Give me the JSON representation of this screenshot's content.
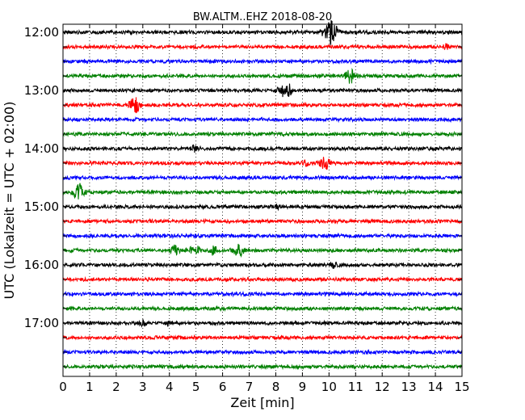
{
  "chart_data": {
    "type": "line",
    "title": "BW.ALTM..EHZ 2018-08-20",
    "xlabel": "Zeit  [min]",
    "ylabel": "UTC (Lokalzeit = UTC + 02:00)",
    "xlim": [
      0,
      15
    ],
    "x_ticks": [
      0,
      1,
      2,
      3,
      4,
      5,
      6,
      7,
      8,
      9,
      10,
      11,
      12,
      13,
      14,
      15
    ],
    "x_tick_labels": [
      "0",
      "1",
      "2",
      "3",
      "4",
      "5",
      "6",
      "7",
      "8",
      "9",
      "10",
      "11",
      "12",
      "13",
      "14",
      "15"
    ],
    "y_tick_labels": [
      "12:00",
      "13:00",
      "14:00",
      "15:00",
      "16:00",
      "17:00"
    ],
    "grid": true,
    "trace_colors": [
      "#000000",
      "#ff0000",
      "#0000ff",
      "#008000"
    ],
    "traces": [
      {
        "start": "12:00",
        "color": "#000000",
        "events": [
          {
            "x": 10.05,
            "amp": 14
          }
        ]
      },
      {
        "start": "12:15",
        "color": "#ff0000",
        "events": [
          {
            "x": 14.4,
            "amp": 3
          }
        ]
      },
      {
        "start": "12:30",
        "color": "#0000ff",
        "events": []
      },
      {
        "start": "12:45",
        "color": "#008000",
        "events": [
          {
            "x": 10.8,
            "amp": 9
          }
        ]
      },
      {
        "start": "13:00",
        "color": "#000000",
        "events": [
          {
            "x": 8.2,
            "amp": 5
          },
          {
            "x": 8.45,
            "amp": 8
          }
        ]
      },
      {
        "start": "13:15",
        "color": "#ff0000",
        "events": [
          {
            "x": 2.7,
            "amp": 9
          }
        ]
      },
      {
        "start": "13:30",
        "color": "#0000ff",
        "events": []
      },
      {
        "start": "13:45",
        "color": "#008000",
        "events": []
      },
      {
        "start": "14:00",
        "color": "#000000",
        "events": [
          {
            "x": 4.95,
            "amp": 4
          }
        ]
      },
      {
        "start": "14:15",
        "color": "#ff0000",
        "events": [
          {
            "x": 9.1,
            "amp": 3
          },
          {
            "x": 9.85,
            "amp": 8
          }
        ]
      },
      {
        "start": "14:30",
        "color": "#0000ff",
        "events": []
      },
      {
        "start": "14:45",
        "color": "#008000",
        "events": [
          {
            "x": 0.6,
            "amp": 10
          }
        ]
      },
      {
        "start": "15:00",
        "color": "#000000",
        "events": [
          {
            "x": 8.05,
            "amp": 3
          }
        ]
      },
      {
        "start": "15:15",
        "color": "#ff0000",
        "events": []
      },
      {
        "start": "15:30",
        "color": "#0000ff",
        "events": []
      },
      {
        "start": "15:45",
        "color": "#008000",
        "events": [
          {
            "x": 4.2,
            "amp": 5
          },
          {
            "x": 4.75,
            "amp": 3
          },
          {
            "x": 5.0,
            "amp": 5
          },
          {
            "x": 5.65,
            "amp": 5
          },
          {
            "x": 6.6,
            "amp": 8
          }
        ]
      },
      {
        "start": "16:00",
        "color": "#000000",
        "events": [
          {
            "x": 10.15,
            "amp": 3
          }
        ]
      },
      {
        "start": "16:15",
        "color": "#ff0000",
        "events": []
      },
      {
        "start": "16:30",
        "color": "#0000ff",
        "events": []
      },
      {
        "start": "16:45",
        "color": "#008000",
        "events": []
      },
      {
        "start": "17:00",
        "color": "#000000",
        "events": [
          {
            "x": 3.0,
            "amp": 3
          },
          {
            "x": 4.0,
            "amp": 3
          }
        ]
      },
      {
        "start": "17:15",
        "color": "#ff0000",
        "events": []
      },
      {
        "start": "17:30",
        "color": "#0000ff",
        "events": []
      },
      {
        "start": "17:45",
        "color": "#008000",
        "events": []
      }
    ]
  }
}
